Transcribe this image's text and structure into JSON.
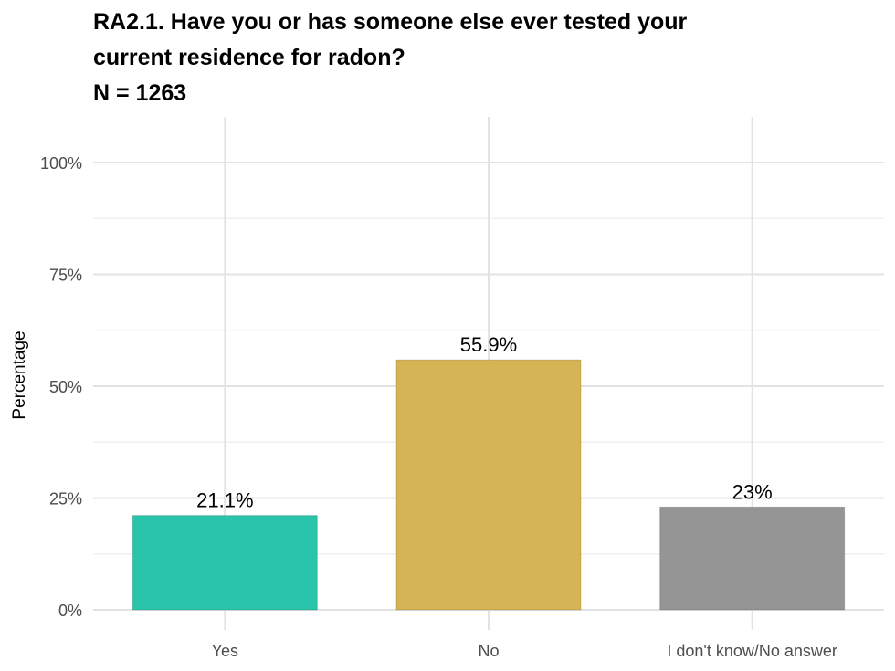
{
  "title_lines": [
    "RA2.1. Have you or has someone else ever tested your",
    "current residence for radon?",
    "N = 1263"
  ],
  "chart_data": {
    "type": "bar",
    "title": "RA2.1. Have you or has someone else ever tested your current residence for radon? N = 1263",
    "categories": [
      "Yes",
      "No",
      "I don't know/No answer"
    ],
    "values": [
      21.1,
      55.9,
      23
    ],
    "value_labels": [
      "21.1%",
      "55.9%",
      "23%"
    ],
    "colors": [
      "#29c4aa",
      "#d4b454",
      "#959595"
    ],
    "xlabel": "",
    "ylabel": "Percentage",
    "ylim": [
      0,
      100
    ],
    "yticks": [
      0,
      25,
      50,
      75,
      100
    ],
    "ytick_labels": [
      "0%",
      "25%",
      "50%",
      "75%",
      "100%"
    ],
    "grid": true,
    "legend": "none"
  }
}
